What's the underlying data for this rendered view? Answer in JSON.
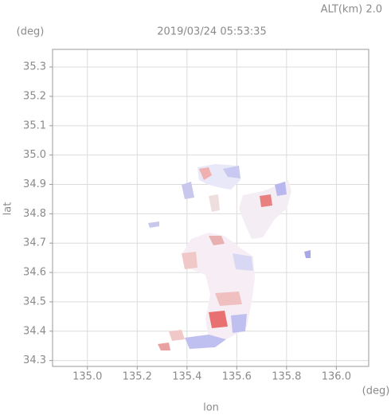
{
  "chart_data": {
    "type": "map",
    "title": "2019/03/24 05:53:35",
    "subtitle": "ALT(km) 2.0",
    "x_label": "lon",
    "y_label": "lat",
    "x_unit": "(deg)",
    "y_unit": "(deg)",
    "xlim": [
      134.86,
      136.13
    ],
    "ylim": [
      34.28,
      35.36
    ],
    "xticks": [
      {
        "value": 135.0,
        "label": "135.0"
      },
      135.2,
      135.4,
      135.6,
      135.8,
      {
        "value": 136.0,
        "label": "136.0"
      }
    ],
    "yticks": [
      34.3,
      34.4,
      34.5,
      34.6,
      34.7,
      34.8,
      34.9,
      {
        "value": 35.0,
        "label": "35.0"
      },
      35.1,
      35.2,
      35.3
    ],
    "grid": true
  }
}
